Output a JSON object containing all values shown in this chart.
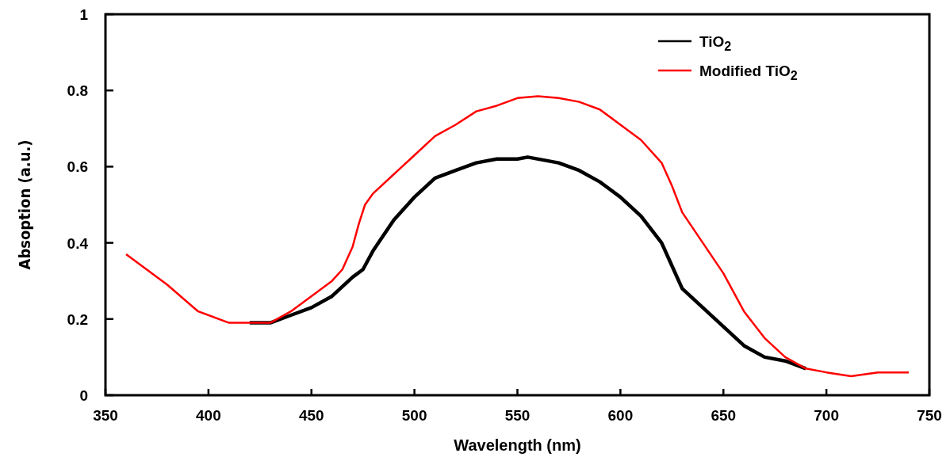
{
  "chart_data": {
    "type": "line",
    "xlabel": "Wavelength (nm)",
    "ylabel": "Absoption (a.u.)",
    "xlim": [
      350,
      750
    ],
    "ylim": [
      0,
      1
    ],
    "xticks": [
      350,
      400,
      450,
      500,
      550,
      600,
      650,
      700,
      750
    ],
    "yticks": [
      0,
      0.2,
      0.4,
      0.6,
      0.8,
      1
    ],
    "grid": false,
    "legend": "top right",
    "marker": "none",
    "line_style": "solid",
    "series": [
      {
        "name": "TiO$_{2}$",
        "color": "#000000",
        "x": [
          420,
          430,
          440,
          450,
          460,
          470,
          475,
          480,
          490,
          500,
          510,
          520,
          530,
          540,
          550,
          555,
          570,
          580,
          590,
          600,
          610,
          620,
          625,
          630,
          640,
          650,
          660,
          670,
          680,
          690
        ],
        "values": [
          0.19,
          0.19,
          0.21,
          0.23,
          0.26,
          0.31,
          0.33,
          0.38,
          0.46,
          0.52,
          0.57,
          0.59,
          0.61,
          0.62,
          0.62,
          0.625,
          0.61,
          0.59,
          0.56,
          0.52,
          0.47,
          0.4,
          0.34,
          0.28,
          0.23,
          0.18,
          0.13,
          0.1,
          0.09,
          0.07
        ]
      },
      {
        "name": "Modified TiO$_{2}$",
        "color": "#ff0000",
        "x": [
          360,
          380,
          395,
          410,
          420,
          430,
          440,
          450,
          460,
          465,
          470,
          473,
          476,
          480,
          490,
          500,
          510,
          520,
          530,
          540,
          550,
          560,
          570,
          580,
          590,
          600,
          610,
          620,
          625,
          630,
          640,
          650,
          660,
          670,
          680,
          690,
          700,
          712,
          725,
          740
        ],
        "values": [
          0.37,
          0.29,
          0.22,
          0.19,
          0.19,
          0.19,
          0.22,
          0.26,
          0.3,
          0.33,
          0.39,
          0.45,
          0.5,
          0.53,
          0.58,
          0.63,
          0.68,
          0.71,
          0.745,
          0.76,
          0.78,
          0.785,
          0.78,
          0.77,
          0.75,
          0.71,
          0.67,
          0.61,
          0.55,
          0.48,
          0.4,
          0.32,
          0.22,
          0.15,
          0.1,
          0.07,
          0.06,
          0.05,
          0.06,
          0.06
        ]
      }
    ]
  }
}
